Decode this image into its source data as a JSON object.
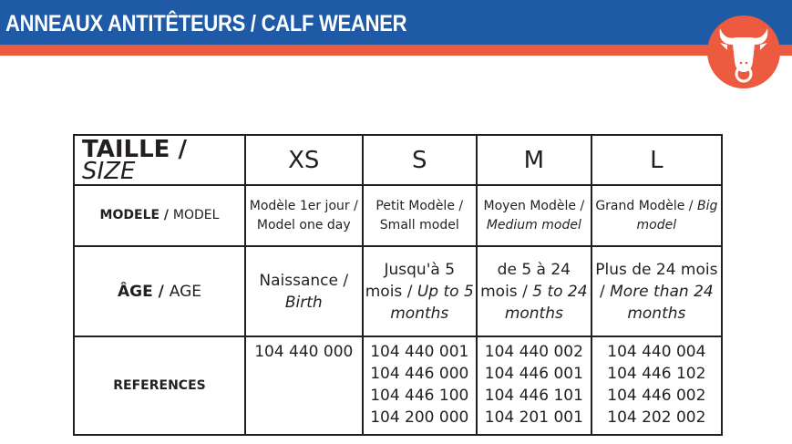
{
  "header": {
    "title": "ANNEAUX ANTITÊTEURS / CALF WEANER",
    "logo_icon": "bull-head-icon",
    "colors": {
      "blue": "#1f5aa6",
      "orange": "#ec5b3f"
    }
  },
  "table": {
    "size_label": {
      "fr": "TAILLE",
      "en": "SIZE"
    },
    "sizes": [
      "XS",
      "S",
      "M",
      "L"
    ],
    "model_label": {
      "fr": "MODELE /",
      "en": "MODEL"
    },
    "models": [
      {
        "fr": "Modèle 1er jour /",
        "en": "Model one day"
      },
      {
        "fr": "Petit Modèle /",
        "en": "Small model"
      },
      {
        "fr": "Moyen Modèle /",
        "en": "Medium model"
      },
      {
        "fr": "Grand Modèle /",
        "en": "Big model"
      }
    ],
    "age_label": {
      "fr": "ÂGE /",
      "en": "AGE"
    },
    "ages": [
      {
        "fr": "Naissance /",
        "en": "Birth"
      },
      {
        "fr": "Jusqu'à 5 mois /",
        "en": "Up to 5 months"
      },
      {
        "fr": "de 5 à 24 mois /",
        "en": "5 to 24 months"
      },
      {
        "fr": "Plus de 24 mois /",
        "en": "More than 24 months"
      }
    ],
    "references_label": "REFERENCES",
    "references": [
      [
        "104 440 000"
      ],
      [
        "104 440 001",
        "104 446 000",
        "104 446 100",
        "104 200 000"
      ],
      [
        "104 440 002",
        "104 446 001",
        "104 446 101",
        "104 201 001"
      ],
      [
        "104 440 004",
        "104 446 102",
        "104 446 002",
        "104 202 002"
      ]
    ]
  }
}
